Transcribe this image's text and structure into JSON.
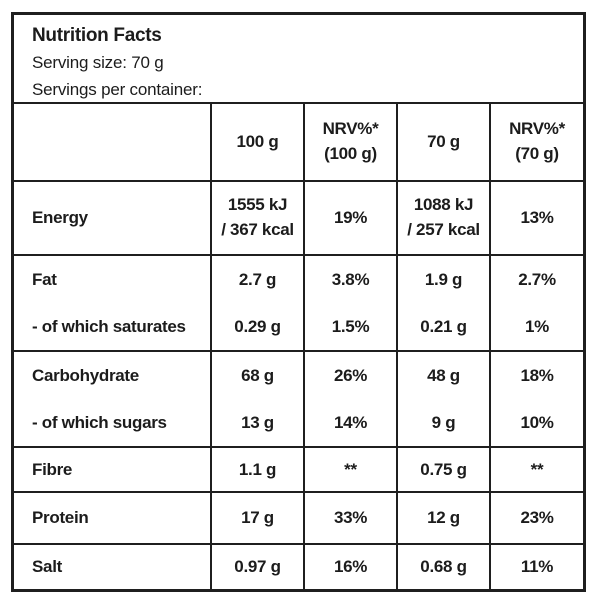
{
  "header": {
    "title": "Nutrition Facts",
    "serving_size": "Serving size: 70 g",
    "servings_per_container": "Servings per container:"
  },
  "table": {
    "columns": [
      {
        "line1": "",
        "line2": ""
      },
      {
        "line1": "100 g",
        "line2": ""
      },
      {
        "line1": "NRV%*",
        "line2": "(100 g)"
      },
      {
        "line1": "70 g",
        "line2": ""
      },
      {
        "line1": "NRV%*",
        "line2": "(70 g)"
      }
    ],
    "rows": [
      {
        "label": "Energy",
        "per_100g": "1555 kJ\n/ 367 kcal",
        "nrv_100g": "19%",
        "per_70g": "1088 kJ\n/ 257 kcal",
        "nrv_70g": "13%"
      },
      {
        "label": "Fat",
        "per_100g": "2.7 g",
        "nrv_100g": "3.8%",
        "per_70g": "1.9 g",
        "nrv_70g": "2.7%"
      },
      {
        "label": "- of which saturates",
        "per_100g": "0.29 g",
        "nrv_100g": "1.5%",
        "per_70g": "0.21 g",
        "nrv_70g": "1%"
      },
      {
        "label": "Carbohydrate",
        "per_100g": "68 g",
        "nrv_100g": "26%",
        "per_70g": "48 g",
        "nrv_70g": "18%"
      },
      {
        "label": "- of which sugars",
        "per_100g": "13 g",
        "nrv_100g": "14%",
        "per_70g": "9 g",
        "nrv_70g": "10%"
      },
      {
        "label": "Fibre",
        "per_100g": "1.1 g",
        "nrv_100g": "**",
        "per_70g": "0.75 g",
        "nrv_70g": "**"
      },
      {
        "label": "Protein",
        "per_100g": "17 g",
        "nrv_100g": "33%",
        "per_70g": "12 g",
        "nrv_70g": "23%"
      },
      {
        "label": "Salt",
        "per_100g": "0.97 g",
        "nrv_100g": "16%",
        "per_70g": "0.68 g",
        "nrv_70g": "11%"
      }
    ]
  }
}
